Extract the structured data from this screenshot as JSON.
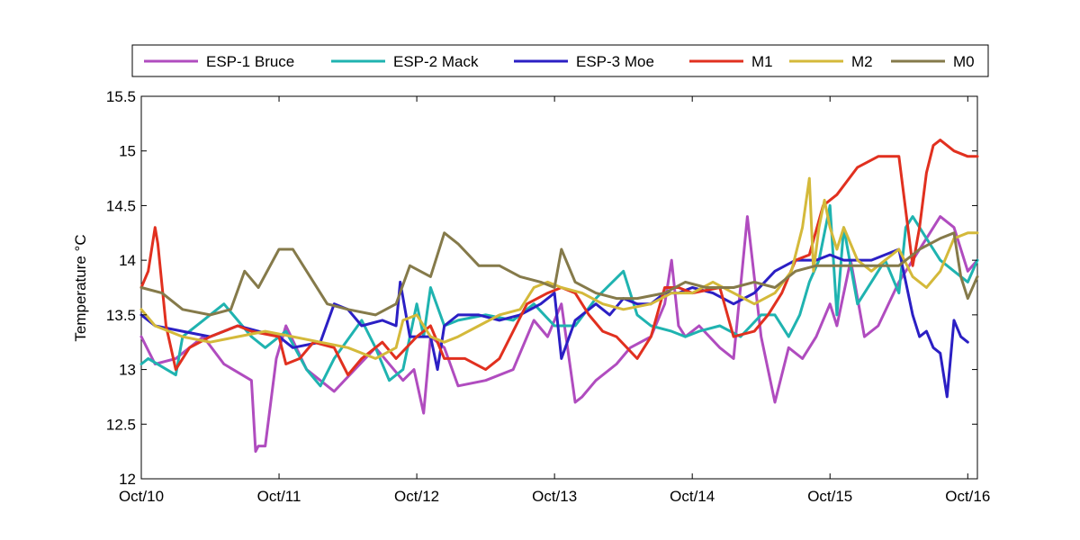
{
  "chart_data": {
    "type": "line",
    "title": "",
    "xlabel": "",
    "ylabel": "Temperature °C",
    "x_ticks": [
      "Oct/10",
      "Oct/11",
      "Oct/12",
      "Oct/13",
      "Oct/14",
      "Oct/15",
      "Oct/16"
    ],
    "xlim_days": [
      10,
      16.07
    ],
    "ylim": [
      12,
      15.5
    ],
    "y_ticks": [
      "12",
      "12.5",
      "13",
      "13.5",
      "14",
      "14.5",
      "15",
      "15.5"
    ],
    "grid": false,
    "legend_position": "top",
    "series": [
      {
        "name": "ESP-1 Bruce",
        "color": "#b04cbf",
        "x": [
          10.0,
          10.1,
          10.25,
          10.45,
          10.6,
          10.8,
          10.83,
          10.85,
          10.9,
          10.98,
          11.05,
          11.2,
          11.4,
          11.55,
          11.7,
          11.9,
          11.98,
          12.05,
          12.1,
          12.2,
          12.3,
          12.5,
          12.7,
          12.85,
          12.95,
          13.05,
          13.15,
          13.2,
          13.3,
          13.45,
          13.55,
          13.7,
          13.8,
          13.85,
          13.9,
          13.95,
          14.05,
          14.2,
          14.3,
          14.4,
          14.5,
          14.6,
          14.7,
          14.8,
          14.9,
          15.0,
          15.05,
          15.15,
          15.25,
          15.35,
          15.5,
          15.6,
          15.7,
          15.8,
          15.9,
          16.0,
          16.07
        ],
        "y": [
          13.3,
          13.05,
          13.1,
          13.3,
          13.05,
          12.9,
          12.25,
          12.3,
          12.3,
          13.1,
          13.4,
          13.0,
          12.8,
          13.0,
          13.2,
          12.9,
          13.0,
          12.6,
          13.3,
          13.2,
          12.85,
          12.9,
          13.0,
          13.45,
          13.3,
          13.6,
          12.7,
          12.75,
          12.9,
          13.05,
          13.2,
          13.3,
          13.6,
          14.0,
          13.4,
          13.3,
          13.4,
          13.2,
          13.1,
          14.4,
          13.3,
          12.7,
          13.2,
          13.1,
          13.3,
          13.6,
          13.4,
          14.0,
          13.3,
          13.4,
          13.8,
          14.0,
          14.2,
          14.4,
          14.3,
          13.9,
          14.0
        ]
      },
      {
        "name": "ESP-2 Mack",
        "color": "#1fb3b0",
        "x": [
          10.0,
          10.05,
          10.25,
          10.3,
          10.45,
          10.6,
          10.8,
          10.9,
          11.05,
          11.2,
          11.3,
          11.4,
          11.6,
          11.7,
          11.8,
          11.9,
          12.0,
          12.05,
          12.1,
          12.2,
          12.3,
          12.5,
          12.7,
          12.85,
          13.0,
          13.15,
          13.3,
          13.5,
          13.6,
          13.7,
          13.85,
          13.95,
          14.05,
          14.2,
          14.35,
          14.5,
          14.6,
          14.7,
          14.78,
          14.85,
          14.92,
          15.0,
          15.05,
          15.1,
          15.2,
          15.3,
          15.4,
          15.5,
          15.55,
          15.6,
          15.7,
          15.8,
          15.9,
          16.0,
          16.07
        ],
        "y": [
          13.05,
          13.1,
          12.95,
          13.3,
          13.45,
          13.6,
          13.3,
          13.2,
          13.35,
          13.0,
          12.85,
          13.1,
          13.45,
          13.2,
          12.9,
          13.0,
          13.6,
          13.3,
          13.75,
          13.4,
          13.45,
          13.5,
          13.45,
          13.6,
          13.4,
          13.4,
          13.65,
          13.9,
          13.5,
          13.4,
          13.35,
          13.3,
          13.35,
          13.4,
          13.3,
          13.5,
          13.5,
          13.3,
          13.5,
          13.8,
          14.0,
          14.5,
          13.5,
          14.3,
          13.6,
          13.8,
          14.0,
          13.7,
          14.3,
          14.4,
          14.2,
          14.0,
          13.9,
          13.8,
          14.0
        ]
      },
      {
        "name": "ESP-3 Moe",
        "color": "#2b1fc4",
        "x": [
          10.0,
          10.1,
          10.3,
          10.5,
          10.7,
          10.85,
          11.0,
          11.1,
          11.3,
          11.4,
          11.5,
          11.6,
          11.75,
          11.85,
          11.88,
          11.95,
          12.1,
          12.15,
          12.2,
          12.3,
          12.45,
          12.6,
          12.75,
          12.9,
          13.0,
          13.05,
          13.15,
          13.3,
          13.4,
          13.5,
          13.6,
          13.7,
          13.8,
          13.9,
          14.0,
          14.15,
          14.3,
          14.45,
          14.6,
          14.75,
          14.9,
          15.0,
          15.1,
          15.3,
          15.5,
          15.6,
          15.65,
          15.7,
          15.75,
          15.8,
          15.85,
          15.9,
          15.95,
          16.0
        ],
        "y": [
          13.5,
          13.4,
          13.35,
          13.3,
          13.4,
          13.35,
          13.3,
          13.2,
          13.25,
          13.6,
          13.55,
          13.4,
          13.45,
          13.4,
          13.8,
          13.3,
          13.3,
          13.0,
          13.4,
          13.5,
          13.5,
          13.45,
          13.5,
          13.6,
          13.7,
          13.1,
          13.45,
          13.6,
          13.5,
          13.65,
          13.6,
          13.6,
          13.7,
          13.7,
          13.75,
          13.7,
          13.6,
          13.7,
          13.9,
          14.0,
          14.0,
          14.05,
          14.0,
          14.0,
          14.1,
          13.5,
          13.3,
          13.35,
          13.2,
          13.15,
          12.75,
          13.45,
          13.3,
          13.25
        ]
      },
      {
        "name": "M1",
        "color": "#e1301f",
        "x": [
          10.0,
          10.05,
          10.1,
          10.12,
          10.18,
          10.25,
          10.35,
          10.5,
          10.7,
          10.8,
          11.0,
          11.05,
          11.15,
          11.25,
          11.4,
          11.5,
          11.6,
          11.75,
          11.85,
          12.0,
          12.1,
          12.2,
          12.35,
          12.5,
          12.6,
          12.8,
          12.95,
          13.05,
          13.15,
          13.25,
          13.35,
          13.45,
          13.6,
          13.7,
          13.8,
          13.9,
          14.0,
          14.2,
          14.3,
          14.45,
          14.55,
          14.65,
          14.75,
          14.85,
          14.95,
          15.05,
          15.2,
          15.35,
          15.5,
          15.6,
          15.65,
          15.7,
          15.75,
          15.8,
          15.9,
          16.0,
          16.07
        ],
        "y": [
          13.75,
          13.9,
          14.3,
          14.15,
          13.4,
          13.0,
          13.2,
          13.3,
          13.4,
          13.35,
          13.3,
          13.05,
          13.1,
          13.25,
          13.2,
          12.95,
          13.1,
          13.25,
          13.1,
          13.3,
          13.4,
          13.1,
          13.1,
          13.0,
          13.1,
          13.6,
          13.7,
          13.75,
          13.7,
          13.5,
          13.35,
          13.3,
          13.1,
          13.3,
          13.75,
          13.75,
          13.7,
          13.75,
          13.3,
          13.35,
          13.5,
          13.7,
          14.0,
          14.05,
          14.5,
          14.6,
          14.85,
          14.95,
          14.95,
          13.95,
          14.3,
          14.8,
          15.05,
          15.1,
          15.0,
          14.95,
          14.95
        ]
      },
      {
        "name": "M2",
        "color": "#d4b93a",
        "x": [
          10.0,
          10.1,
          10.3,
          10.5,
          10.7,
          10.9,
          11.1,
          11.3,
          11.5,
          11.7,
          11.85,
          11.9,
          12.0,
          12.1,
          12.2,
          12.3,
          12.45,
          12.6,
          12.75,
          12.85,
          12.95,
          13.05,
          13.2,
          13.35,
          13.5,
          13.7,
          13.85,
          14.0,
          14.15,
          14.3,
          14.45,
          14.6,
          14.72,
          14.8,
          14.85,
          14.88,
          14.92,
          14.96,
          15.0,
          15.05,
          15.1,
          15.2,
          15.3,
          15.4,
          15.5,
          15.6,
          15.7,
          15.8,
          15.9,
          16.0,
          16.07
        ],
        "y": [
          13.55,
          13.4,
          13.3,
          13.25,
          13.3,
          13.35,
          13.3,
          13.25,
          13.2,
          13.1,
          13.2,
          13.45,
          13.5,
          13.3,
          13.25,
          13.3,
          13.4,
          13.5,
          13.55,
          13.75,
          13.8,
          13.75,
          13.7,
          13.6,
          13.55,
          13.6,
          13.7,
          13.7,
          13.8,
          13.7,
          13.6,
          13.7,
          13.9,
          14.3,
          14.75,
          13.9,
          14.3,
          14.55,
          14.3,
          14.1,
          14.3,
          14.0,
          13.9,
          14.0,
          14.1,
          13.85,
          13.75,
          13.9,
          14.2,
          14.25,
          14.25
        ]
      },
      {
        "name": "M0",
        "color": "#857a4a",
        "x": [
          10.0,
          10.15,
          10.3,
          10.5,
          10.65,
          10.75,
          10.85,
          11.0,
          11.1,
          11.2,
          11.35,
          11.5,
          11.7,
          11.85,
          11.95,
          12.1,
          12.2,
          12.3,
          12.45,
          12.6,
          12.75,
          12.9,
          13.0,
          13.05,
          13.15,
          13.3,
          13.45,
          13.6,
          13.8,
          13.95,
          14.1,
          14.3,
          14.45,
          14.6,
          14.75,
          14.9,
          15.0,
          15.15,
          15.3,
          15.5,
          15.65,
          15.8,
          15.9,
          15.95,
          16.0,
          16.07
        ],
        "y": [
          13.75,
          13.7,
          13.55,
          13.5,
          13.55,
          13.9,
          13.75,
          14.1,
          14.1,
          13.9,
          13.6,
          13.55,
          13.5,
          13.6,
          13.95,
          13.85,
          14.25,
          14.15,
          13.95,
          13.95,
          13.85,
          13.8,
          13.75,
          14.1,
          13.8,
          13.7,
          13.65,
          13.65,
          13.7,
          13.8,
          13.75,
          13.75,
          13.8,
          13.75,
          13.9,
          13.95,
          13.95,
          13.95,
          13.95,
          13.95,
          14.1,
          14.2,
          14.25,
          13.85,
          13.65,
          13.85
        ]
      }
    ]
  }
}
